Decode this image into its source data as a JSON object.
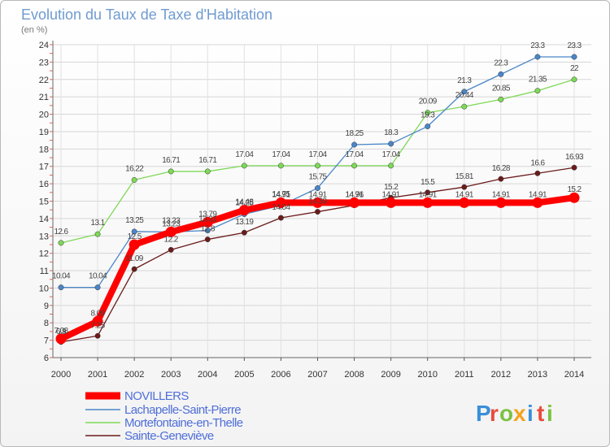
{
  "chart_data": {
    "type": "line",
    "title": "Evolution du Taux de Taxe d'Habitation",
    "subtitle": "(en %)",
    "x": [
      "2000",
      "2001",
      "2002",
      "2003",
      "2004",
      "2005",
      "2006",
      "2007",
      "2008",
      "2009",
      "2010",
      "2011",
      "2012",
      "2013",
      "2014"
    ],
    "ylim": [
      6,
      24
    ],
    "yticks": [
      6,
      7,
      8,
      9,
      10,
      11,
      12,
      13,
      14,
      15,
      16,
      17,
      18,
      19,
      20,
      21,
      22,
      23,
      24
    ],
    "grid": true,
    "legend_position": "bottom-left",
    "series": [
      {
        "name": "NOVILLERS",
        "color": "#ff0000",
        "values": [
          7.08,
          8.09,
          12.5,
          13.23,
          13.79,
          14.48,
          14.91,
          14.91,
          14.91,
          14.91,
          14.91,
          14.91,
          14.91,
          14.91,
          15.2
        ],
        "labels": [
          "7.08",
          "8.09",
          "12.5",
          "13.23",
          "13.79",
          "14.48",
          "14.91",
          "14.91",
          "14.91",
          "14.91",
          "14.91",
          "14.91",
          "14.91",
          "14.91",
          "15.2"
        ]
      },
      {
        "name": "Lachapelle-Saint-Pierre",
        "color": "#4a86c8",
        "values": [
          10.04,
          10.04,
          13.25,
          13.23,
          13.31,
          14.25,
          14.75,
          15.75,
          18.25,
          18.3,
          19.3,
          21.3,
          22.3,
          23.3,
          23.3
        ],
        "labels": [
          "10.04",
          "10.04",
          "13.25",
          "13.23",
          "13.31",
          "14.25",
          "14.75",
          "15.75",
          "18.25",
          "18.3",
          "19.3",
          "21.3",
          "22.3",
          "23.3",
          "23.3"
        ]
      },
      {
        "name": "Mortefontaine-en-Thelle",
        "color": "#7ed957",
        "values": [
          12.6,
          13.1,
          16.22,
          16.71,
          16.71,
          17.04,
          17.04,
          17.04,
          17.04,
          17.04,
          20.09,
          20.44,
          20.85,
          21.35,
          22
        ],
        "labels": [
          "12.6",
          "13.1",
          "16.22",
          "16.71",
          "16.71",
          "17.04",
          "17.04",
          "17.04",
          "17.04",
          "17.04",
          "20.09",
          "20.44",
          "20.85",
          "21.35",
          "22"
        ]
      },
      {
        "name": "Sainte-Geneviève",
        "color": "#6b1b1b",
        "values": [
          6.9,
          7.25,
          11.09,
          12.2,
          12.8,
          13.19,
          14.04,
          14.39,
          14.76,
          15.2,
          15.5,
          15.81,
          16.28,
          16.6,
          16.93
        ],
        "labels": [
          "6.9",
          "7.25",
          "11.09",
          "12.2",
          "12.8",
          "13.19",
          "14.04",
          "14.39",
          "14.76",
          "15.2",
          "15.5",
          "15.81",
          "16.28",
          "16.6",
          "16.93"
        ]
      }
    ]
  },
  "logo": {
    "text": "Proxiti",
    "letters": [
      "P",
      "r",
      "o",
      "x",
      "i",
      "t",
      "i"
    ],
    "colors": [
      "#3a8fd8",
      "#e94b3c",
      "#7cc242",
      "#f4a21d",
      "#3a8fd8",
      "#e94b3c",
      "#7cc242"
    ]
  }
}
